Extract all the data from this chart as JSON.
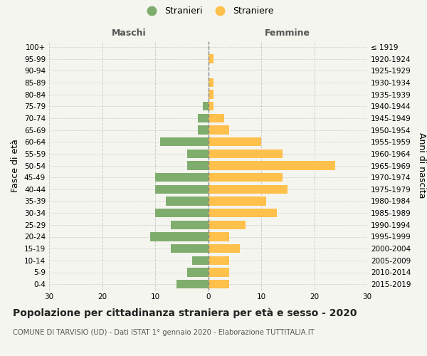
{
  "age_groups": [
    "0-4",
    "5-9",
    "10-14",
    "15-19",
    "20-24",
    "25-29",
    "30-34",
    "35-39",
    "40-44",
    "45-49",
    "50-54",
    "55-59",
    "60-64",
    "65-69",
    "70-74",
    "75-79",
    "80-84",
    "85-89",
    "90-94",
    "95-99",
    "100+"
  ],
  "birth_years": [
    "2015-2019",
    "2010-2014",
    "2005-2009",
    "2000-2004",
    "1995-1999",
    "1990-1994",
    "1985-1989",
    "1980-1984",
    "1975-1979",
    "1970-1974",
    "1965-1969",
    "1960-1964",
    "1955-1959",
    "1950-1954",
    "1945-1949",
    "1940-1944",
    "1935-1939",
    "1930-1934",
    "1925-1929",
    "1920-1924",
    "≤ 1919"
  ],
  "males": [
    6,
    4,
    3,
    7,
    11,
    7,
    10,
    8,
    10,
    10,
    4,
    4,
    9,
    2,
    2,
    1,
    0,
    0,
    0,
    0,
    0
  ],
  "females": [
    4,
    4,
    4,
    6,
    4,
    7,
    13,
    11,
    15,
    14,
    24,
    14,
    10,
    4,
    3,
    1,
    1,
    1,
    0,
    1,
    0
  ],
  "male_color": "#7fad6e",
  "female_color": "#ffc04c",
  "background_color": "#f5f5f0",
  "grid_color": "#cccccc",
  "dashed_line_color": "#888888",
  "title": "Popolazione per cittadinanza straniera per età e sesso - 2020",
  "subtitle": "COMUNE DI TARVISIO (UD) - Dati ISTAT 1° gennaio 2020 - Elaborazione TUTTITALIA.IT",
  "ylabel_left": "Fasce di età",
  "ylabel_right": "Anni di nascita",
  "header_left": "Maschi",
  "header_right": "Femmine",
  "legend_stranieri": "Stranieri",
  "legend_straniere": "Straniere",
  "xlim": 30,
  "tick_fontsize": 7.5,
  "label_fontsize": 9,
  "title_fontsize": 10
}
